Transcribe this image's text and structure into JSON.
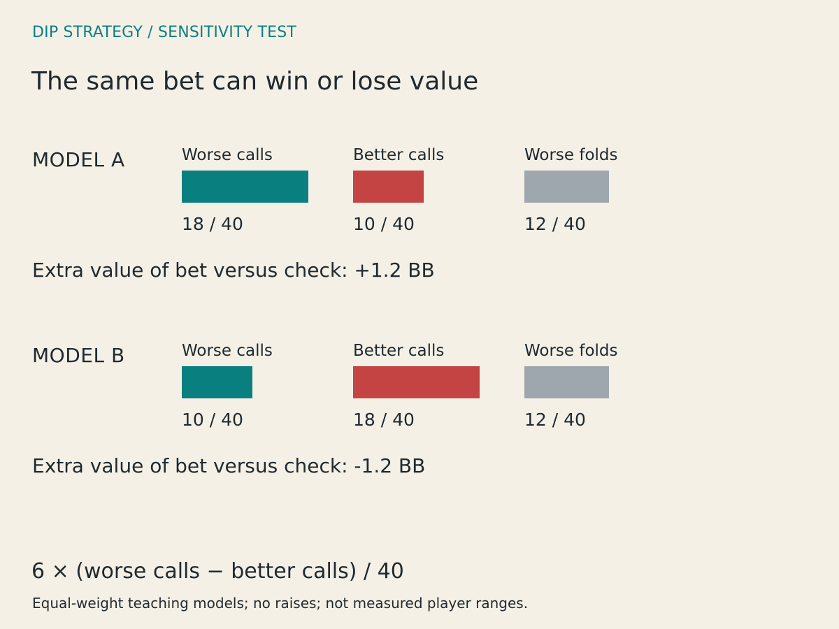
{
  "header": {
    "eyebrow": "DIP STRATEGY / SENSITIVITY TEST",
    "title": "The same bet can win or lose value"
  },
  "colors": {
    "background": "#f5f0e6",
    "worse_calls": "#0a7f80",
    "better_calls": "#c44444",
    "worse_folds": "#9ea7ad",
    "accent_text": "#0a7f80"
  },
  "models": [
    {
      "label": "MODEL A",
      "metrics": [
        {
          "label": "Worse calls",
          "value_text": "18 / 40"
        },
        {
          "label": "Better calls",
          "value_text": "10 / 40"
        },
        {
          "label": "Worse folds",
          "value_text": "12 / 40"
        }
      ],
      "extra_value": "Extra value of bet versus check: +1.2 BB"
    },
    {
      "label": "MODEL B",
      "metrics": [
        {
          "label": "Worse calls",
          "value_text": "10 / 40"
        },
        {
          "label": "Better calls",
          "value_text": "18 / 40"
        },
        {
          "label": "Worse folds",
          "value_text": "12 / 40"
        }
      ],
      "extra_value": "Extra value of bet versus check: -1.2 BB"
    }
  ],
  "formula": "6 × (worse calls − better calls) / 40",
  "footnote": "Equal-weight teaching models; no raises; not measured player ranges.",
  "chart_data": {
    "type": "bar",
    "categories": [
      "Worse calls",
      "Better calls",
      "Worse folds"
    ],
    "series": [
      {
        "name": "MODEL A",
        "values": [
          18,
          10,
          12
        ]
      },
      {
        "name": "MODEL B",
        "values": [
          10,
          18,
          12
        ]
      }
    ],
    "denominator": 40,
    "extra_value_bb": [
      1.2,
      -1.2
    ]
  }
}
